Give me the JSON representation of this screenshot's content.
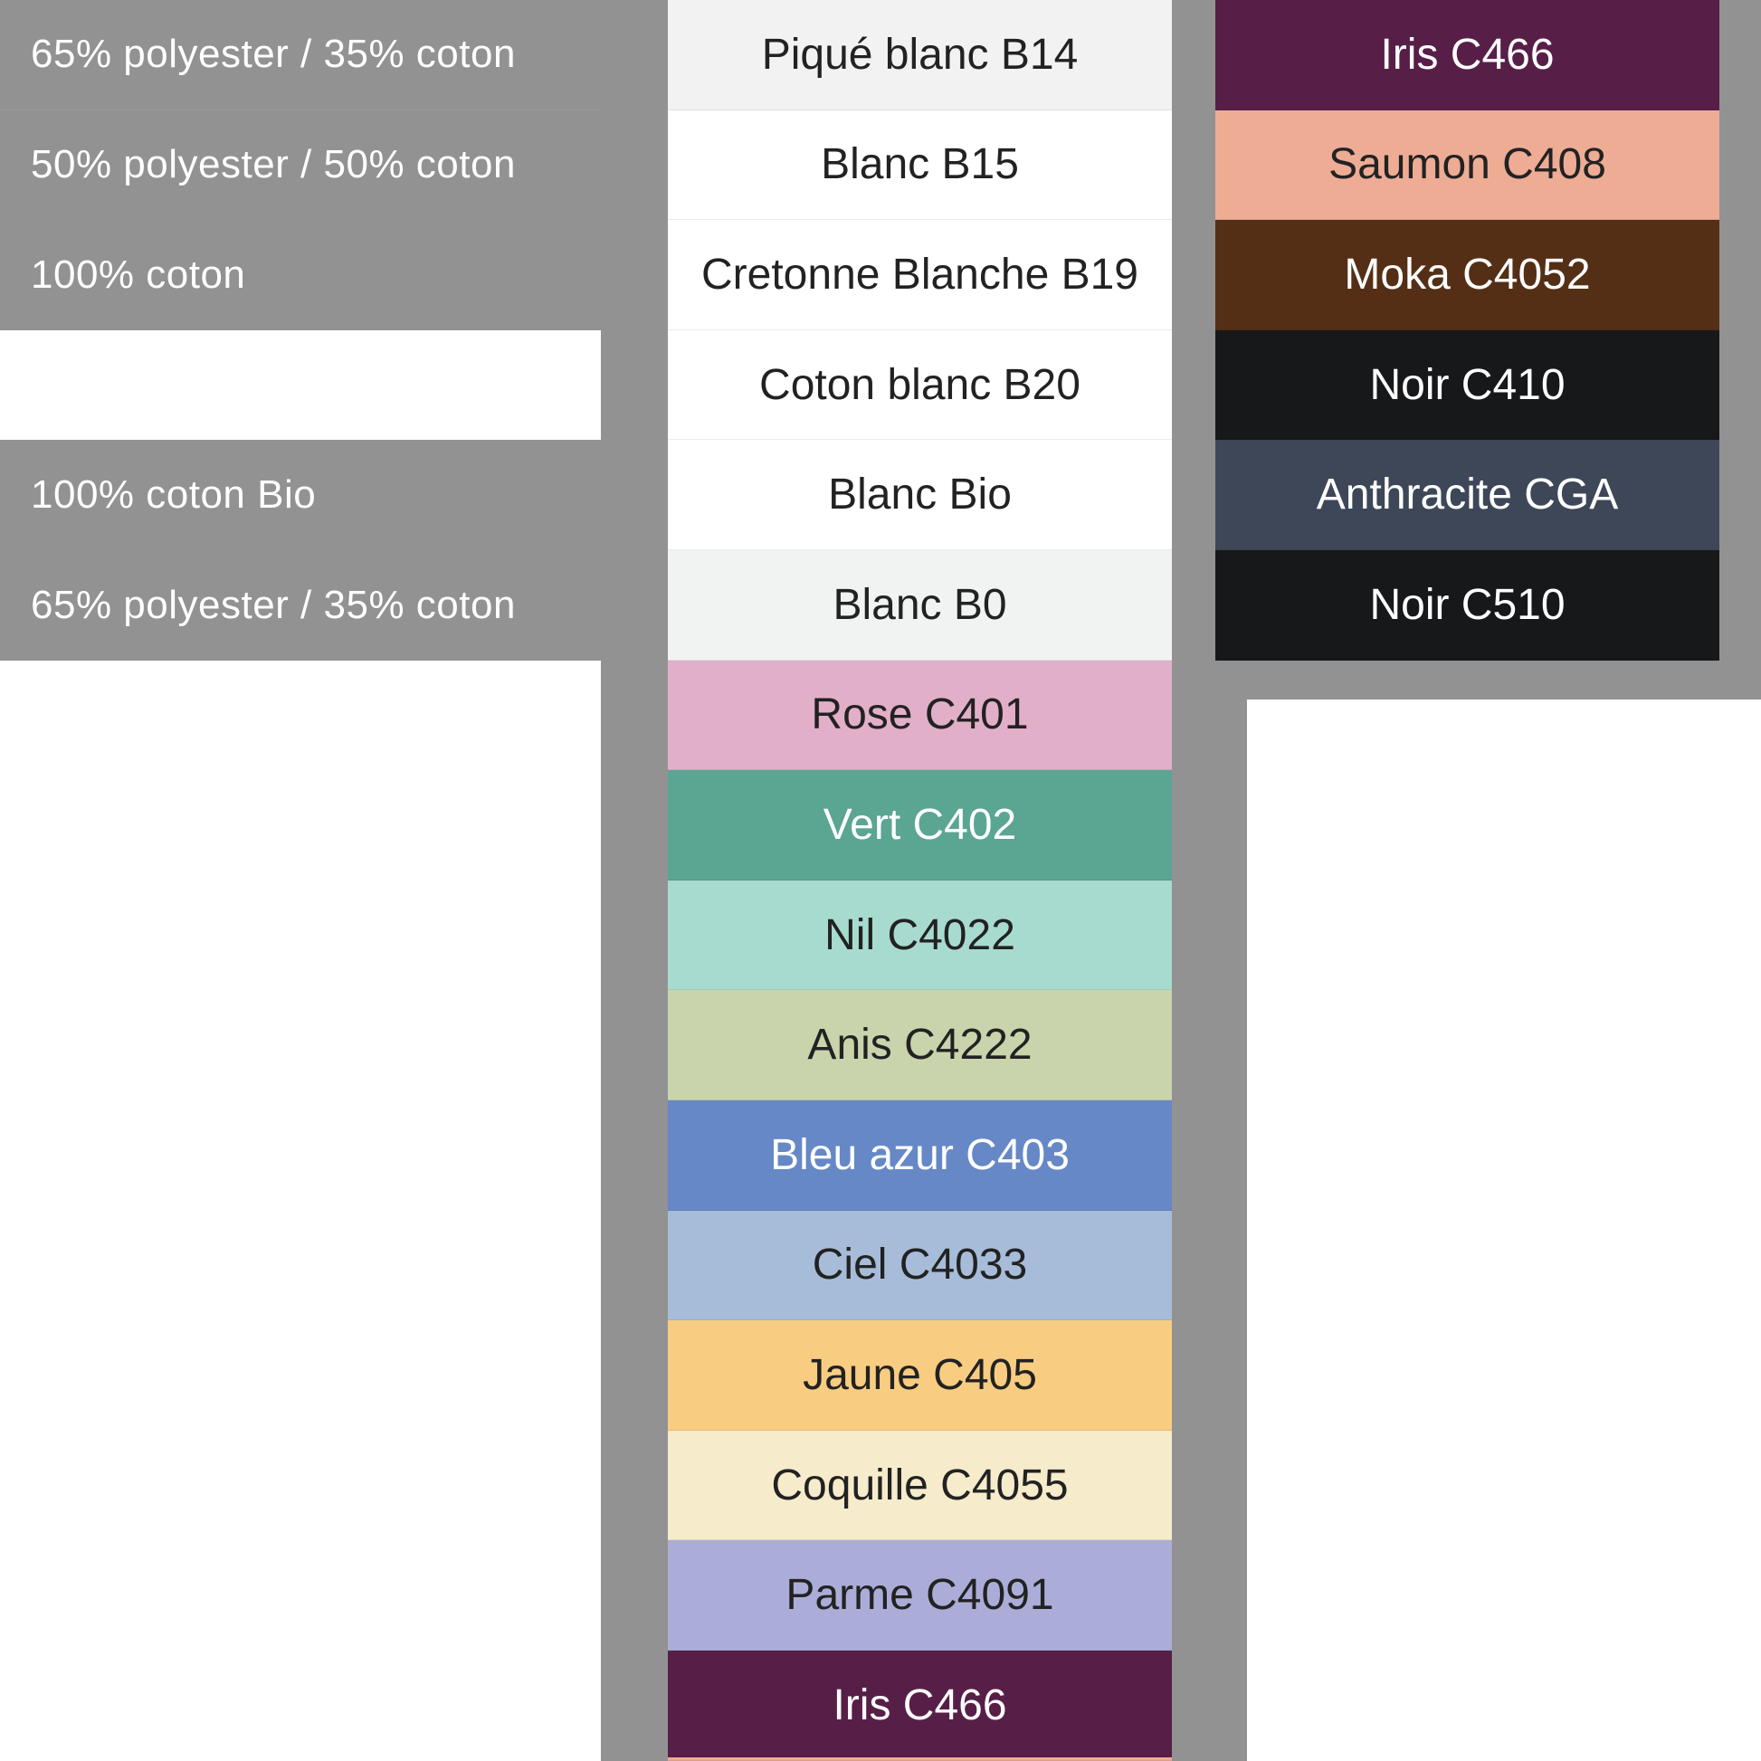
{
  "compositions": [
    {
      "label": "65% polyester / 35% coton"
    },
    {
      "label": "50% polyester / 50% coton"
    },
    {
      "label": "100% coton"
    },
    {
      "label": ""
    },
    {
      "label": "100% coton Bio"
    },
    {
      "label": "65% polyester / 35% coton"
    }
  ],
  "colors_main": [
    {
      "label": "Piqué blanc B14",
      "bg": "#f2f2f2",
      "fg": "#222222"
    },
    {
      "label": "Blanc B15",
      "bg": "#ffffff",
      "fg": "#222222"
    },
    {
      "label": "Cretonne Blanche B19",
      "bg": "#ffffff",
      "fg": "#222222"
    },
    {
      "label": "Coton blanc B20",
      "bg": "#ffffff",
      "fg": "#222222"
    },
    {
      "label": "Blanc Bio",
      "bg": "#ffffff",
      "fg": "#222222"
    },
    {
      "label": "Blanc B0",
      "bg": "#f1f3f2",
      "fg": "#222222"
    },
    {
      "label": "Rose C401",
      "bg": "#e2afc9",
      "fg": "#222222"
    },
    {
      "label": "Vert C402",
      "bg": "#5ba593",
      "fg": "#ffffff"
    },
    {
      "label": "Nil C4022",
      "bg": "#a8dbd0",
      "fg": "#222222"
    },
    {
      "label": "Anis C4222",
      "bg": "#c9d4ac",
      "fg": "#222222"
    },
    {
      "label": "Bleu azur C403",
      "bg": "#6688c7",
      "fg": "#ffffff"
    },
    {
      "label": "Ciel C4033",
      "bg": "#a7bcd8",
      "fg": "#222222"
    },
    {
      "label": "Jaune C405",
      "bg": "#f8cd81",
      "fg": "#222222"
    },
    {
      "label": "Coquille C4055",
      "bg": "#f6ebcb",
      "fg": "#222222"
    },
    {
      "label": "Parme C4091",
      "bg": "#abadd8",
      "fg": "#222222"
    },
    {
      "label": "Iris C466",
      "bg": "#571f47",
      "fg": "#ffffff"
    }
  ],
  "colors_extra": [
    {
      "label": "Iris C466",
      "bg": "#571f47",
      "fg": "#ffffff"
    },
    {
      "label": "Saumon C408",
      "bg": "#eeac95",
      "fg": "#222222"
    },
    {
      "label": "Moka C4052",
      "bg": "#542f16",
      "fg": "#ffffff"
    },
    {
      "label": "Noir C410",
      "bg": "#17181a",
      "fg": "#ffffff"
    },
    {
      "label": "Anthracite CGA",
      "bg": "#3e4758",
      "fg": "#ffffff"
    },
    {
      "label": "Noir C510",
      "bg": "#17181a",
      "fg": "#ffffff"
    }
  ],
  "bottom_sliver_color": "#eeac95"
}
